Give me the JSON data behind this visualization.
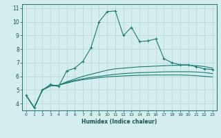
{
  "xlabel": "Humidex (Indice chaleur)",
  "bg_color": "#d4edee",
  "grid_color": "#b8d4d4",
  "line_color": "#1a7a6e",
  "xlim": [
    -0.5,
    23.5
  ],
  "ylim": [
    3.5,
    11.3
  ],
  "xticks": [
    0,
    1,
    2,
    3,
    4,
    5,
    6,
    7,
    8,
    9,
    10,
    11,
    12,
    13,
    14,
    15,
    16,
    17,
    18,
    19,
    20,
    21,
    22,
    23
  ],
  "yticks": [
    4,
    5,
    6,
    7,
    8,
    9,
    10,
    11
  ],
  "series1_x": [
    0,
    1,
    2,
    3,
    4,
    5,
    6,
    7,
    8,
    9,
    10,
    11,
    12,
    13,
    14,
    15,
    16,
    17,
    18,
    19,
    20,
    21,
    22,
    23
  ],
  "series1_y": [
    4.6,
    3.7,
    5.0,
    5.4,
    5.25,
    6.4,
    6.6,
    7.1,
    8.1,
    10.0,
    10.75,
    10.8,
    9.0,
    9.6,
    8.55,
    8.6,
    8.75,
    7.3,
    7.0,
    6.85,
    6.85,
    6.7,
    6.55,
    6.5
  ],
  "series2_x": [
    0,
    1,
    2,
    3,
    4,
    5,
    6,
    7,
    8,
    9,
    10,
    11,
    12,
    13,
    14,
    15,
    16,
    17,
    18,
    19,
    20,
    21,
    22,
    23
  ],
  "series2_y": [
    4.6,
    3.7,
    5.0,
    5.3,
    5.35,
    5.6,
    5.8,
    6.0,
    6.15,
    6.3,
    6.45,
    6.55,
    6.6,
    6.65,
    6.7,
    6.72,
    6.75,
    6.78,
    6.8,
    6.82,
    6.82,
    6.78,
    6.72,
    6.6
  ],
  "series3_x": [
    0,
    1,
    2,
    3,
    4,
    5,
    6,
    7,
    8,
    9,
    10,
    11,
    12,
    13,
    14,
    15,
    16,
    17,
    18,
    19,
    20,
    21,
    22,
    23
  ],
  "series3_y": [
    4.6,
    3.7,
    5.0,
    5.3,
    5.35,
    5.55,
    5.7,
    5.82,
    5.92,
    6.0,
    6.08,
    6.15,
    6.2,
    6.24,
    6.27,
    6.29,
    6.31,
    6.33,
    6.34,
    6.34,
    6.34,
    6.32,
    6.28,
    6.2
  ],
  "series4_x": [
    0,
    1,
    2,
    3,
    4,
    5,
    6,
    7,
    8,
    9,
    10,
    11,
    12,
    13,
    14,
    15,
    16,
    17,
    18,
    19,
    20,
    21,
    22,
    23
  ],
  "series4_y": [
    4.6,
    3.7,
    5.0,
    5.3,
    5.35,
    5.5,
    5.65,
    5.75,
    5.83,
    5.9,
    5.96,
    6.0,
    6.03,
    6.06,
    6.08,
    6.09,
    6.1,
    6.1,
    6.1,
    6.1,
    6.08,
    6.05,
    6.0,
    5.95
  ]
}
